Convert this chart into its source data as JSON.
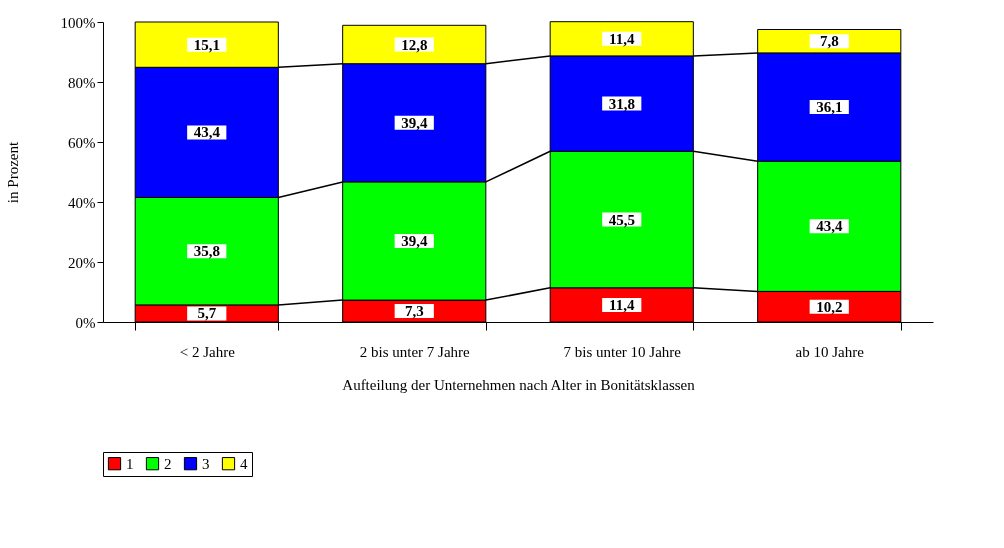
{
  "chart_data": {
    "type": "bar",
    "stacked": true,
    "xlabel": "Aufteilung der Unternehmen nach Alter in Bonitätsklassen",
    "ylabel": "in Prozent",
    "categories": [
      "< 2 Jahre",
      "2 bis unter 7 Jahre",
      "7 bis unter 10 Jahre",
      "ab 10 Jahre"
    ],
    "series": [
      {
        "name": "1",
        "color": "#ff0000",
        "values": [
          5.7,
          7.3,
          11.4,
          10.2
        ],
        "value_labels": [
          "5,7",
          "7,3",
          "11,4",
          "10,2"
        ]
      },
      {
        "name": "2",
        "color": "#00ff00",
        "values": [
          35.8,
          39.4,
          45.5,
          43.4
        ],
        "value_labels": [
          "35,8",
          "39,4",
          "45,5",
          "43,4"
        ]
      },
      {
        "name": "3",
        "color": "#0000ff",
        "values": [
          43.4,
          39.4,
          31.8,
          36.1
        ],
        "value_labels": [
          "43,4",
          "39,4",
          "31,8",
          "36,1"
        ]
      },
      {
        "name": "4",
        "color": "#ffff00",
        "values": [
          15.1,
          12.8,
          11.4,
          7.8
        ],
        "value_labels": [
          "15,1",
          "12,8",
          "11,4",
          "7,8"
        ]
      }
    ],
    "ylim": [
      0,
      100
    ],
    "yticks": [
      {
        "value": 0,
        "label": "0%"
      },
      {
        "value": 20,
        "label": "20%"
      },
      {
        "value": 40,
        "label": "40%"
      },
      {
        "value": 60,
        "label": "60%"
      },
      {
        "value": 80,
        "label": "80%"
      },
      {
        "value": 100,
        "label": "100%"
      }
    ],
    "grid": false,
    "legend": "bottom"
  }
}
